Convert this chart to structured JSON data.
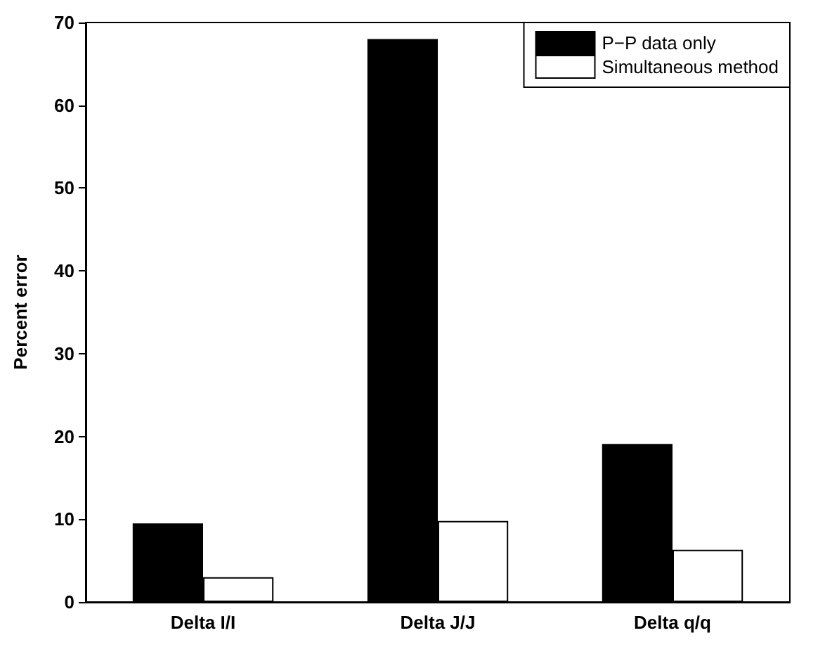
{
  "chart_data": {
    "type": "bar",
    "ylabel": "Percent error",
    "categories": [
      "Delta I/I",
      "Delta J/J",
      "Delta q/q"
    ],
    "series": [
      {
        "name": "P−P data only",
        "color": "#000000",
        "values": [
          9.5,
          68,
          19.1
        ]
      },
      {
        "name": "Simultaneous method",
        "color": "#ffffff",
        "values": [
          3.0,
          9.8,
          6.3
        ]
      }
    ],
    "ylim": [
      0,
      70
    ],
    "yticks": [
      0,
      10,
      20,
      30,
      40,
      50,
      60,
      70
    ],
    "grid": false,
    "legend": "top right"
  }
}
